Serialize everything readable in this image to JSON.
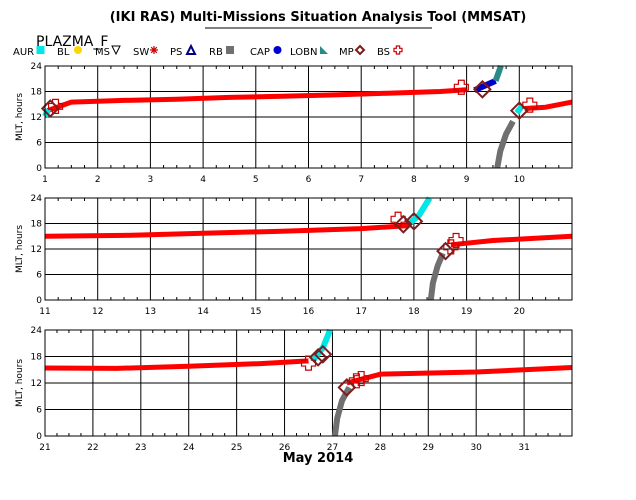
{
  "title": "(IKI RAS) Multi-Missions Situation Analysis Tool (MMSAT)",
  "satellite": "PLAZMA_F",
  "month_label": "May 2014",
  "legend": [
    {
      "label": "AUR",
      "icon": "square",
      "color": "#00e5e5"
    },
    {
      "label": "BL",
      "icon": "circle",
      "color": "#ffd700"
    },
    {
      "label": "MS",
      "icon": "triangle-down",
      "color": "#000000"
    },
    {
      "label": "SW",
      "icon": "asterisk",
      "color": "#cc0000"
    },
    {
      "label": "PS",
      "icon": "triangle-up",
      "color": "#000080"
    },
    {
      "label": "RB",
      "icon": "square",
      "color": "#707070"
    },
    {
      "label": "CAP",
      "icon": "circle",
      "color": "#0000cc"
    },
    {
      "label": "LOBN",
      "icon": "wedge",
      "color": "#2a8a8a"
    },
    {
      "label": "MP",
      "icon": "diamond",
      "color": "#7a1e1e"
    },
    {
      "label": "BS",
      "icon": "cross",
      "color": "#cc0000"
    }
  ],
  "chart_data": [
    {
      "type": "line",
      "ylabel": "MLT, hours",
      "xlim": [
        1,
        11
      ],
      "ylim": [
        0,
        24
      ],
      "x_ticks": [
        "1",
        "2",
        "3",
        "4",
        "5",
        "6",
        "7",
        "8",
        "9",
        "10"
      ],
      "y_ticks": [
        "0",
        "6",
        "12",
        "18",
        "24"
      ],
      "grid": true,
      "series": [
        {
          "region": "PS",
          "color": "#ff0000",
          "segments": [
            [
              [
                1.05,
                13.5
              ],
              [
                1.5,
                15.5
              ],
              [
                2.5,
                15.9
              ],
              [
                3.5,
                16.2
              ],
              [
                4.5,
                16.6
              ],
              [
                5.5,
                16.9
              ],
              [
                6.5,
                17.2
              ],
              [
                7.5,
                17.6
              ],
              [
                8.5,
                18.0
              ],
              [
                9.0,
                18.4
              ]
            ],
            [
              [
                10.1,
                14.0
              ],
              [
                10.5,
                14.3
              ],
              [
                11.0,
                15.5
              ]
            ]
          ]
        },
        {
          "region": "AUR",
          "color": "#00e5e5",
          "segments": [
            [
              [
                1.0,
                12.2
              ],
              [
                1.06,
                13.8
              ]
            ],
            [
              [
                9.95,
                13.0
              ],
              [
                10.05,
                14.5
              ]
            ]
          ]
        },
        {
          "region": "CAP",
          "color": "#0000cc",
          "segments": [
            [
              [
                9.15,
                18.3
              ],
              [
                9.55,
                20.5
              ]
            ]
          ]
        },
        {
          "region": "LOBN",
          "color": "#2a8a8a",
          "segments": [
            [
              [
                9.55,
                20.5
              ],
              [
                9.65,
                24.0
              ]
            ]
          ]
        },
        {
          "region": "RB",
          "color": "#707070",
          "segments": [
            [
              [
                9.58,
                0.0
              ],
              [
                9.64,
                4.0
              ],
              [
                9.75,
                8.0
              ],
              [
                9.88,
                11.0
              ]
            ]
          ]
        }
      ],
      "crossings": {
        "MP": [
          [
            1.1,
            14.0
          ],
          [
            9.3,
            18.5
          ],
          [
            10.0,
            13.5
          ]
        ],
        "BS": [
          [
            1.2,
            14.5
          ],
          [
            8.9,
            19.0
          ],
          [
            10.2,
            14.8
          ]
        ]
      }
    },
    {
      "type": "line",
      "ylabel": "MLT, hours",
      "xlim": [
        11,
        21
      ],
      "ylim": [
        0,
        24
      ],
      "x_ticks": [
        "11",
        "12",
        "13",
        "14",
        "15",
        "16",
        "17",
        "18",
        "19",
        "20"
      ],
      "y_ticks": [
        "0",
        "6",
        "12",
        "18",
        "24"
      ],
      "grid": true,
      "series": [
        {
          "region": "PS",
          "color": "#ff0000",
          "segments": [
            [
              [
                11.0,
                15.0
              ],
              [
                12.5,
                15.2
              ],
              [
                14.0,
                15.7
              ],
              [
                15.5,
                16.2
              ],
              [
                17.0,
                16.8
              ],
              [
                17.9,
                17.5
              ]
            ],
            [
              [
                18.7,
                13.0
              ],
              [
                19.5,
                14.0
              ],
              [
                21.0,
                15.0
              ]
            ]
          ]
        },
        {
          "region": "AUR",
          "color": "#00e5e5",
          "segments": [
            [
              [
                17.9,
                17.8
              ],
              [
                18.1,
                20.0
              ],
              [
                18.3,
                24.0
              ]
            ]
          ]
        },
        {
          "region": "RB",
          "color": "#707070",
          "segments": [
            [
              [
                18.32,
                0.0
              ],
              [
                18.36,
                4.0
              ],
              [
                18.45,
                8.0
              ],
              [
                18.55,
                11.0
              ]
            ]
          ]
        }
      ],
      "crossings": {
        "MP": [
          [
            17.8,
            17.8
          ],
          [
            18.0,
            18.5
          ],
          [
            18.6,
            11.5
          ]
        ],
        "BS": [
          [
            17.7,
            19.0
          ],
          [
            18.7,
            12.5
          ],
          [
            18.8,
            14.0
          ]
        ]
      }
    },
    {
      "type": "line",
      "ylabel": "MLT, hours",
      "xlim": [
        21,
        32
      ],
      "ylim": [
        0,
        24
      ],
      "x_ticks": [
        "21",
        "22",
        "23",
        "24",
        "25",
        "26",
        "27",
        "28",
        "29",
        "30",
        "31"
      ],
      "y_ticks": [
        "0",
        "6",
        "12",
        "18",
        "24"
      ],
      "grid": true,
      "series": [
        {
          "region": "PS",
          "color": "#ff0000",
          "segments": [
            [
              [
                21.0,
                15.4
              ],
              [
                22.5,
                15.3
              ],
              [
                24.0,
                15.8
              ],
              [
                25.5,
                16.4
              ],
              [
                26.5,
                17.0
              ]
            ],
            [
              [
                27.3,
                12.0
              ],
              [
                28.0,
                14.0
              ],
              [
                30.0,
                14.5
              ],
              [
                32.0,
                15.5
              ]
            ]
          ]
        },
        {
          "region": "AUR",
          "color": "#00e5e5",
          "segments": [
            [
              [
                26.6,
                17.2
              ],
              [
                26.8,
                20.0
              ],
              [
                26.95,
                24.0
              ]
            ]
          ]
        },
        {
          "region": "RB",
          "color": "#707070",
          "segments": [
            [
              [
                27.05,
                0.0
              ],
              [
                27.1,
                4.0
              ],
              [
                27.2,
                8.0
              ],
              [
                27.35,
                11.0
              ]
            ]
          ]
        }
      ],
      "crossings": {
        "MP": [
          [
            26.7,
            17.8
          ],
          [
            26.8,
            18.5
          ],
          [
            27.3,
            11.0
          ]
        ],
        "BS": [
          [
            26.5,
            16.5
          ],
          [
            27.5,
            12.5
          ],
          [
            27.6,
            13.0
          ]
        ]
      }
    }
  ]
}
